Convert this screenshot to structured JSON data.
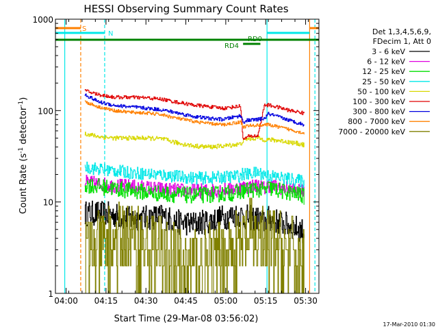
{
  "chart_data": {
    "type": "line",
    "title": "HESSI Observing Summary Count Rates",
    "xlabel": "Start Time (29-Mar-08 03:56:02)",
    "ylabel_main": "Count Rate (s",
    "ylabel_sup1": "-1",
    "ylabel_mid": " detector",
    "ylabel_sup2": "-1",
    "ylabel_end": ")",
    "y_scale": "log",
    "ylim": [
      1,
      1000
    ],
    "y_ticks": [
      {
        "value": 1,
        "label": "1"
      },
      {
        "value": 10,
        "label": "10"
      },
      {
        "value": 100,
        "label": "100"
      },
      {
        "value": 1000,
        "label": "1000"
      }
    ],
    "xlim_min": [
      236,
      335
    ],
    "x_ticks": [
      {
        "min": 240,
        "label": "04:00"
      },
      {
        "min": 255,
        "label": "04:15"
      },
      {
        "min": 270,
        "label": "04:30"
      },
      {
        "min": 285,
        "label": "04:45"
      },
      {
        "min": 300,
        "label": "05:00"
      },
      {
        "min": 315,
        "label": "05:15"
      },
      {
        "min": 330,
        "label": "05:30"
      }
    ],
    "legend": {
      "header": [
        "Det 1,3,4,5,6,9,",
        "FDecim 1, Att 0"
      ],
      "placement": "right",
      "entries": [
        {
          "label": "3 - 6 keV",
          "color": "#000000"
        },
        {
          "label": "6 - 12 keV",
          "color": "#e000e0"
        },
        {
          "label": "12 - 25 keV",
          "color": "#00e000"
        },
        {
          "label": "25 - 50 keV",
          "color": "#00e8e8"
        },
        {
          "label": "50 - 100 keV",
          "color": "#d8d800"
        },
        {
          "label": "100 - 300 keV",
          "color": "#e00000"
        },
        {
          "label": "300 - 800 keV",
          "color": "#0000e0"
        },
        {
          "label": "800 - 7000 keV",
          "color": "#ff8000"
        },
        {
          "label": "7000 - 20000 keV",
          "color": "#808000"
        }
      ]
    },
    "flags": [
      {
        "label": "S",
        "color": "#ff8000",
        "segments": [
          [
            236,
            245.5
          ],
          [
            331.5,
            335
          ]
        ]
      },
      {
        "label": "N",
        "color": "#00e8e8",
        "segments": [
          [
            236,
            254.5
          ],
          [
            315.5,
            331.5
          ]
        ]
      },
      {
        "label": "RD0",
        "color": "#008000",
        "segments": [
          [
            236,
            335
          ]
        ]
      },
      {
        "label": "RD4",
        "color": "#008000",
        "segments": [
          [
            306.5,
            313
          ]
        ]
      }
    ],
    "vlines": [
      {
        "min": 239.5,
        "color": "#00e8e8",
        "style": "solid"
      },
      {
        "min": 245.5,
        "color": "#ff8000",
        "style": "dashed"
      },
      {
        "min": 254.5,
        "color": "#00e8e8",
        "style": "dashed"
      },
      {
        "min": 315.5,
        "color": "#00e8e8",
        "style": "solid"
      },
      {
        "min": 331.5,
        "color": "#ff8000",
        "style": "solid"
      },
      {
        "min": 333.5,
        "color": "#00e8e8",
        "style": "dashed"
      }
    ],
    "series": [
      {
        "name": "3 - 6 keV",
        "color": "#000000",
        "noise": 0.14,
        "x": [
          247,
          252,
          258,
          264,
          270,
          276,
          282,
          288,
          294,
          299,
          305.5,
          306.5,
          308,
          312,
          314.5,
          316,
          320,
          324,
          328,
          329.5
        ],
        "y": [
          7.5,
          7.5,
          7.2,
          6.5,
          6.7,
          7.0,
          6.0,
          5.8,
          6.2,
          6.8,
          7.3,
          6.8,
          6.8,
          6.5,
          6.0,
          6.6,
          6.0,
          5.5,
          5.0,
          4.7
        ]
      },
      {
        "name": "6 - 12 keV",
        "color": "#e000e0",
        "noise": 0.08,
        "x": [
          247,
          252,
          258,
          264,
          270,
          276,
          282,
          288,
          294,
          299,
          305.5,
          306.5,
          308,
          312,
          314.5,
          316,
          320,
          324,
          328,
          329.5
        ],
        "y": [
          16.5,
          15.8,
          15.0,
          14.8,
          14.3,
          13.8,
          13.4,
          13.2,
          13.3,
          13.7,
          14.3,
          14.5,
          14.6,
          15.2,
          14.0,
          15.2,
          14.5,
          13.8,
          13.0,
          12.6
        ]
      },
      {
        "name": "12 - 25 keV",
        "color": "#00e000",
        "noise": 0.09,
        "x": [
          247,
          252,
          258,
          264,
          270,
          276,
          282,
          288,
          294,
          299,
          305.5,
          306.5,
          308,
          312,
          314.5,
          316,
          320,
          324,
          328,
          329.5
        ],
        "y": [
          15.5,
          14.8,
          14.0,
          13.3,
          12.8,
          12.3,
          12.0,
          11.8,
          12.0,
          12.3,
          12.8,
          13.3,
          13.5,
          13.8,
          13.2,
          14.3,
          13.3,
          12.6,
          12.0,
          11.3
        ]
      },
      {
        "name": "25 - 50 keV",
        "color": "#00e8e8",
        "noise": 0.07,
        "x": [
          247,
          252,
          258,
          264,
          270,
          276,
          282,
          288,
          294,
          299,
          305.5,
          306.5,
          308,
          312,
          314.5,
          316,
          320,
          324,
          328,
          329.5
        ],
        "y": [
          24,
          23,
          22,
          21,
          20.3,
          19.8,
          19.0,
          18.3,
          18.3,
          18.7,
          19.3,
          20.5,
          20.0,
          21.0,
          20.0,
          19.5,
          18.6,
          17.8,
          17.0,
          16.6
        ]
      },
      {
        "name": "50 - 100 keV",
        "color": "#d8d800",
        "noise": 0.025,
        "x": [
          247,
          252,
          258,
          264,
          270,
          276,
          282,
          288,
          294,
          299,
          305.5,
          306.5,
          308,
          312,
          314.5,
          316,
          320,
          324,
          328,
          329.5
        ],
        "y": [
          56,
          52,
          50,
          50,
          50,
          49,
          44,
          41,
          40,
          41,
          43,
          47,
          49,
          50,
          48,
          48,
          47,
          45,
          43,
          42
        ]
      },
      {
        "name": "100 - 300 keV",
        "color": "#e00000",
        "noise": 0.02,
        "x": [
          247,
          252,
          258,
          264,
          270,
          276,
          282,
          288,
          294,
          299,
          305.5,
          306.5,
          308,
          312,
          314.5,
          316,
          320,
          324,
          328,
          329.5
        ],
        "y": [
          165,
          150,
          140,
          140,
          138,
          133,
          123,
          115,
          110,
          106,
          112,
          47,
          52,
          53,
          115,
          115,
          108,
          100,
          96,
          92
        ]
      },
      {
        "name": "300 - 800 keV",
        "color": "#0000e0",
        "noise": 0.02,
        "x": [
          247,
          252,
          258,
          264,
          270,
          276,
          282,
          288,
          294,
          299,
          305.5,
          306.5,
          308,
          312,
          314.5,
          316,
          320,
          324,
          328,
          329.5
        ],
        "y": [
          150,
          125,
          114,
          110,
          106,
          102,
          94,
          86,
          82,
          80,
          88,
          75,
          78,
          80,
          82,
          92,
          85,
          78,
          72,
          70
        ]
      },
      {
        "name": "800 - 7000 keV",
        "color": "#ff8000",
        "noise": 0.018,
        "x": [
          247,
          252,
          258,
          264,
          270,
          276,
          282,
          288,
          294,
          299,
          305.5,
          306.5,
          308,
          312,
          314.5,
          316,
          320,
          324,
          328,
          329.5
        ],
        "y": [
          125,
          110,
          100,
          96,
          94,
          90,
          82,
          76,
          72,
          70,
          75,
          66,
          68,
          69,
          70,
          70,
          66,
          62,
          58,
          56
        ]
      },
      {
        "name": "7000 - 20000 keV",
        "color": "#808000",
        "noise": 0.45,
        "x": [
          247,
          252,
          258,
          264,
          270,
          276,
          282,
          288,
          294,
          299,
          305.5,
          306.5,
          308,
          312,
          314.5,
          316,
          320,
          324,
          328,
          329.5
        ],
        "y": [
          2.5,
          3.0,
          3.5,
          4.0,
          3.0,
          2.5,
          2.0,
          2.0,
          2.0,
          2.5,
          3.0,
          3.5,
          3.8,
          4.0,
          3.0,
          3.5,
          3.0,
          2.8,
          2.2,
          2.0
        ]
      }
    ]
  },
  "footer": {
    "timestamp": "17-Mar-2010 01:30"
  }
}
